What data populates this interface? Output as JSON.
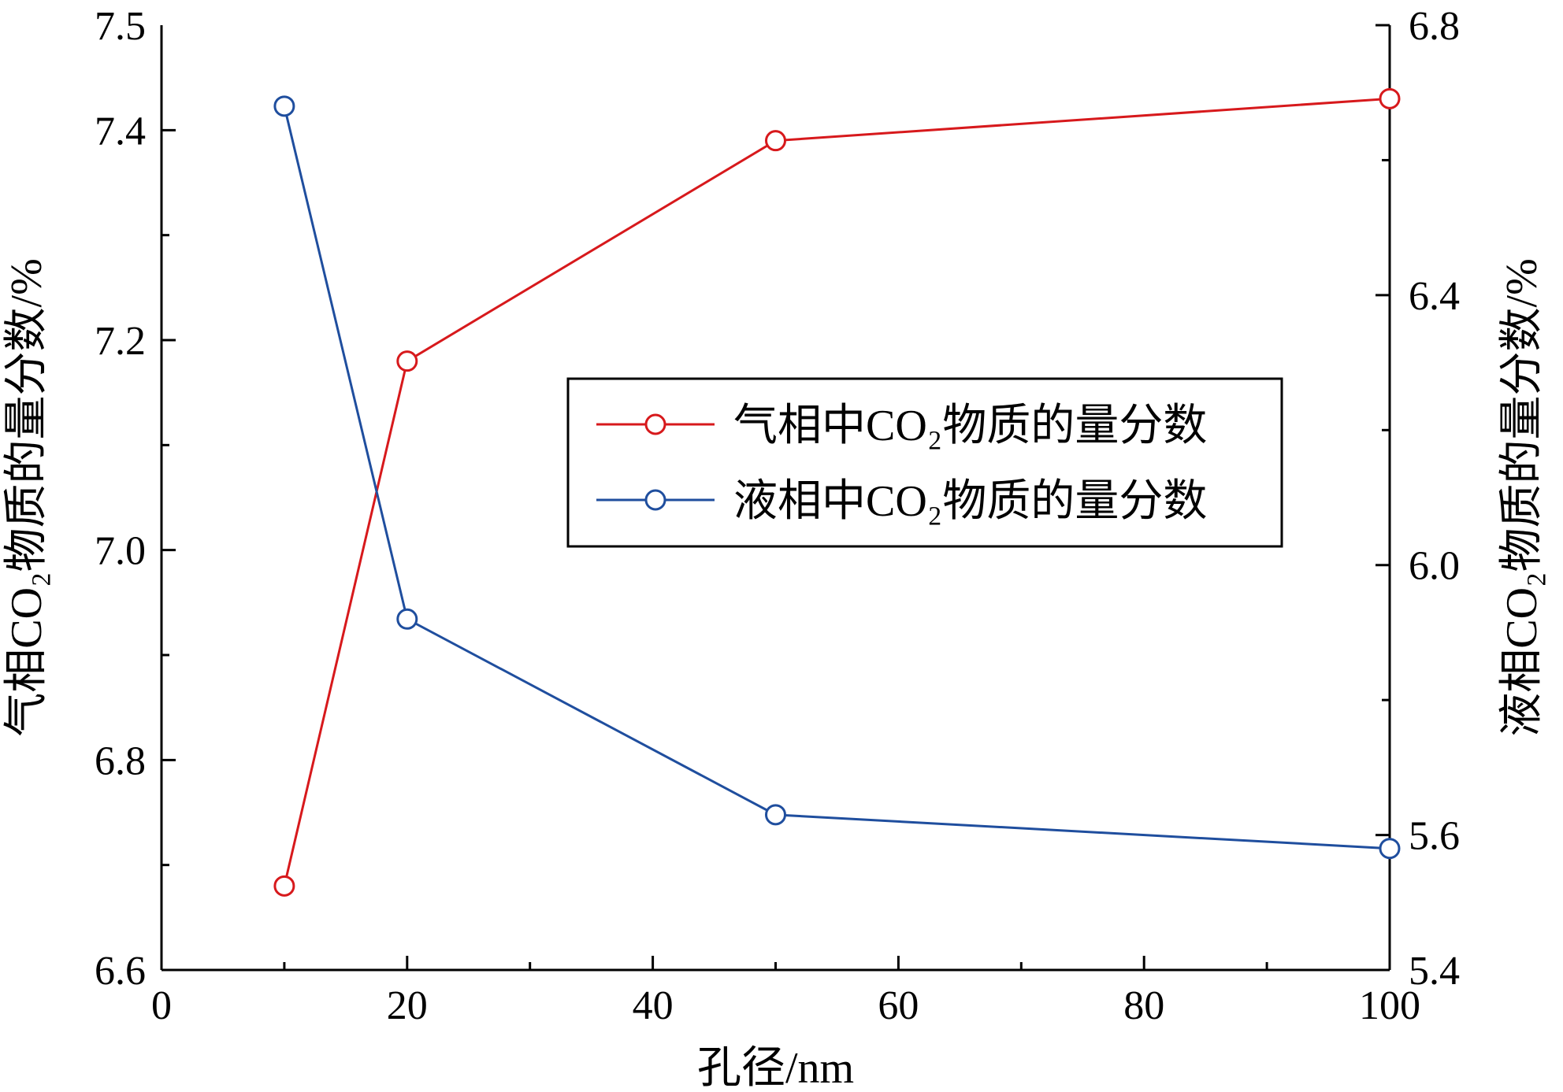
{
  "chart_data": {
    "type": "line",
    "x": [
      10,
      20,
      50,
      100
    ],
    "xlabel": "孔径/nm",
    "xlim": [
      0,
      100
    ],
    "xticks": [
      "0",
      "20",
      "40",
      "60",
      "80",
      "100"
    ],
    "ylabel_left": "气相CO₂物质的量分数/%",
    "ylim_left": [
      6.6,
      7.5
    ],
    "yticks_left": [
      "6.6",
      "6.8",
      "7.0",
      "7.2",
      "7.4",
      "7.5"
    ],
    "ylabel_right": "液相CO₂物质的量分数/%",
    "ylim_right": [
      5.4,
      6.8
    ],
    "yticks_right": [
      "5.4",
      "5.6",
      "6.0",
      "6.4",
      "6.8"
    ],
    "series": [
      {
        "name": "气相中CO₂物质的量分数",
        "axis": "left",
        "color": "#d7191c",
        "marker": "open-circle",
        "values": [
          6.68,
          7.18,
          7.39,
          7.43
        ]
      },
      {
        "name": "液相中CO₂物质的量分数",
        "axis": "right",
        "color": "#1f4e9e",
        "marker": "open-circle",
        "values": [
          6.68,
          5.92,
          5.63,
          5.58
        ]
      }
    ],
    "legend_position": "center-right",
    "grid": false
  }
}
